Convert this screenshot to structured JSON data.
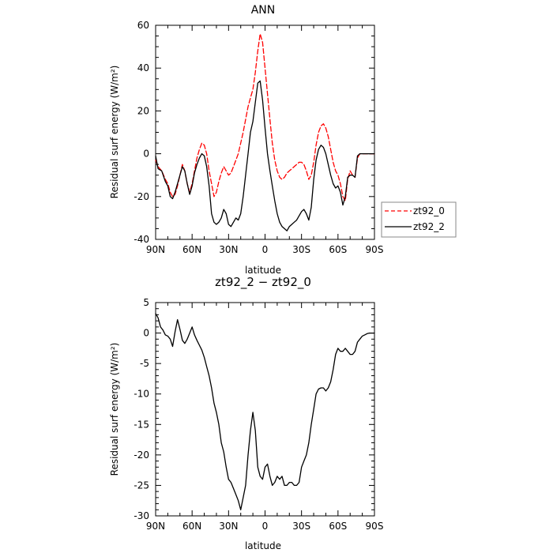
{
  "chart_data": [
    {
      "type": "line",
      "title": "ANN",
      "xlabel": "latitude",
      "ylabel": "Residual surf energy (W/m²)",
      "xlim": [
        90,
        -90
      ],
      "ylim": [
        -40,
        60
      ],
      "yticks": [
        -40,
        -20,
        0,
        20,
        40,
        60
      ],
      "xticks": [
        90,
        60,
        30,
        0,
        -30,
        -60,
        -90
      ],
      "xtick_labels": [
        "90N",
        "60N",
        "30N",
        "0",
        "30S",
        "60S",
        "90S"
      ],
      "legend_position": "right",
      "series": [
        {
          "name": "zt92_0",
          "color": "#ff0000",
          "style": "dashed",
          "x": [
            90,
            88,
            85,
            82,
            80,
            78,
            76,
            74,
            72,
            70,
            68,
            66,
            64,
            62,
            60,
            58,
            56,
            54,
            52,
            50,
            48,
            46,
            44,
            42,
            40,
            38,
            36,
            34,
            32,
            30,
            28,
            26,
            24,
            22,
            20,
            18,
            16,
            14,
            12,
            10,
            8,
            6,
            4,
            2,
            0,
            -2,
            -4,
            -6,
            -8,
            -10,
            -12,
            -14,
            -16,
            -18,
            -20,
            -22,
            -24,
            -26,
            -28,
            -30,
            -32,
            -34,
            -36,
            -38,
            -40,
            -42,
            -44,
            -46,
            -48,
            -50,
            -52,
            -54,
            -56,
            -58,
            -60,
            -62,
            -64,
            -66,
            -68,
            -70,
            -72,
            -74,
            -76,
            -78,
            -80,
            -82,
            -85,
            -88,
            -90
          ],
          "y": [
            -3,
            -6,
            -8,
            -12,
            -14,
            -18,
            -20,
            -19,
            -15,
            -10,
            -5,
            -8,
            -14,
            -18,
            -14,
            -8,
            -2,
            2,
            5,
            4,
            0,
            -8,
            -14,
            -20,
            -18,
            -13,
            -9,
            -6,
            -8,
            -10,
            -9,
            -6,
            -3,
            0,
            5,
            10,
            16,
            22,
            26,
            30,
            38,
            48,
            56,
            52,
            40,
            28,
            16,
            5,
            -3,
            -8,
            -11,
            -12,
            -11,
            -9,
            -8,
            -7,
            -6,
            -5,
            -4,
            -4,
            -5,
            -8,
            -12,
            -10,
            -4,
            4,
            10,
            13,
            14,
            12,
            8,
            2,
            -4,
            -8,
            -10,
            -14,
            -20,
            -22,
            -12,
            -8,
            -10,
            -11,
            -2,
            0,
            0,
            0,
            0,
            0,
            0
          ]
        },
        {
          "name": "zt92_2",
          "color": "#000000",
          "style": "solid",
          "x": [
            90,
            88,
            85,
            82,
            80,
            78,
            76,
            74,
            72,
            70,
            68,
            66,
            64,
            62,
            60,
            58,
            56,
            54,
            52,
            50,
            48,
            46,
            44,
            42,
            40,
            38,
            36,
            34,
            32,
            30,
            28,
            26,
            24,
            22,
            20,
            18,
            16,
            14,
            12,
            10,
            8,
            6,
            4,
            2,
            0,
            -2,
            -4,
            -6,
            -8,
            -10,
            -12,
            -14,
            -16,
            -18,
            -20,
            -22,
            -24,
            -26,
            -28,
            -30,
            -32,
            -34,
            -36,
            -38,
            -40,
            -42,
            -44,
            -46,
            -48,
            -50,
            -52,
            -54,
            -56,
            -58,
            -60,
            -62,
            -64,
            -66,
            -68,
            -70,
            -72,
            -74,
            -76,
            -78,
            -80,
            -82,
            -85,
            -88,
            -90
          ],
          "y": [
            -1,
            -7,
            -8,
            -13,
            -15,
            -20,
            -21,
            -18,
            -14,
            -10,
            -6,
            -8,
            -14,
            -19,
            -15,
            -9,
            -5,
            -2,
            0,
            -1,
            -6,
            -15,
            -28,
            -32,
            -33,
            -32,
            -30,
            -26,
            -28,
            -33,
            -34,
            -32,
            -30,
            -31,
            -28,
            -20,
            -10,
            0,
            10,
            15,
            24,
            33,
            34,
            25,
            12,
            0,
            -8,
            -15,
            -22,
            -28,
            -32,
            -34,
            -35,
            -36,
            -34,
            -33,
            -32,
            -31,
            -29,
            -27,
            -26,
            -28,
            -31,
            -25,
            -12,
            -3,
            2,
            4,
            3,
            0,
            -5,
            -10,
            -14,
            -16,
            -15,
            -18,
            -24,
            -20,
            -11,
            -10,
            -10,
            -11,
            -1,
            0,
            0,
            0,
            0,
            0,
            0
          ]
        }
      ]
    },
    {
      "type": "line",
      "title": "zt92_2 − zt92_0",
      "xlabel": "latitude",
      "ylabel": "Residual surf energy (W/m²)",
      "xlim": [
        90,
        -90
      ],
      "ylim": [
        -30,
        5
      ],
      "yticks": [
        -30,
        -25,
        -20,
        -15,
        -10,
        -5,
        0,
        5
      ],
      "xticks": [
        90,
        60,
        30,
        0,
        -30,
        -60,
        -90
      ],
      "xtick_labels": [
        "90N",
        "60N",
        "30N",
        "0",
        "30S",
        "60S",
        "90S"
      ],
      "series": [
        {
          "color": "#000000",
          "style": "solid",
          "x": [
            90,
            88,
            86,
            84,
            82,
            80,
            78,
            76,
            74,
            72,
            70,
            68,
            66,
            64,
            62,
            60,
            58,
            56,
            54,
            52,
            50,
            48,
            46,
            44,
            42,
            40,
            38,
            36,
            34,
            32,
            30,
            28,
            26,
            24,
            22,
            20,
            18,
            16,
            14,
            12,
            10,
            8,
            6,
            4,
            2,
            0,
            -2,
            -4,
            -6,
            -8,
            -10,
            -12,
            -14,
            -16,
            -18,
            -20,
            -22,
            -24,
            -26,
            -28,
            -30,
            -32,
            -34,
            -36,
            -38,
            -40,
            -42,
            -44,
            -46,
            -48,
            -50,
            -52,
            -54,
            -56,
            -58,
            -60,
            -62,
            -64,
            -66,
            -68,
            -70,
            -72,
            -74,
            -76,
            -78,
            -80,
            -82,
            -84,
            -86,
            -88,
            -90
          ],
          "y": [
            3.2,
            2.5,
            1,
            0.5,
            -0.3,
            -0.5,
            -1,
            -2.2,
            0.2,
            2.2,
            0.6,
            -1.2,
            -1.7,
            -1,
            0,
            1,
            -0.3,
            -1.2,
            -2,
            -2.8,
            -4,
            -5.5,
            -7,
            -9,
            -11.5,
            -13,
            -15,
            -18,
            -19.5,
            -22,
            -24,
            -24.5,
            -25.5,
            -26.5,
            -27.5,
            -29,
            -27,
            -25,
            -20,
            -16,
            -13,
            -16,
            -22,
            -23.5,
            -24,
            -22,
            -21.5,
            -23.5,
            -25,
            -24.5,
            -23.5,
            -24,
            -23.5,
            -25,
            -25,
            -24.5,
            -24.5,
            -25,
            -25,
            -24.5,
            -22,
            -21,
            -20,
            -18,
            -15,
            -12.5,
            -10,
            -9.2,
            -9,
            -9,
            -9.5,
            -9,
            -8,
            -6,
            -3.5,
            -2.5,
            -3,
            -3,
            -2.5,
            -3,
            -3.5,
            -3.5,
            -3,
            -1.5,
            -1,
            -0.5,
            -0.3,
            -0.1,
            0,
            0,
            0
          ]
        }
      ]
    }
  ],
  "legend": {
    "items": [
      {
        "label": "zt92_0"
      },
      {
        "label": "zt92_2"
      }
    ]
  }
}
